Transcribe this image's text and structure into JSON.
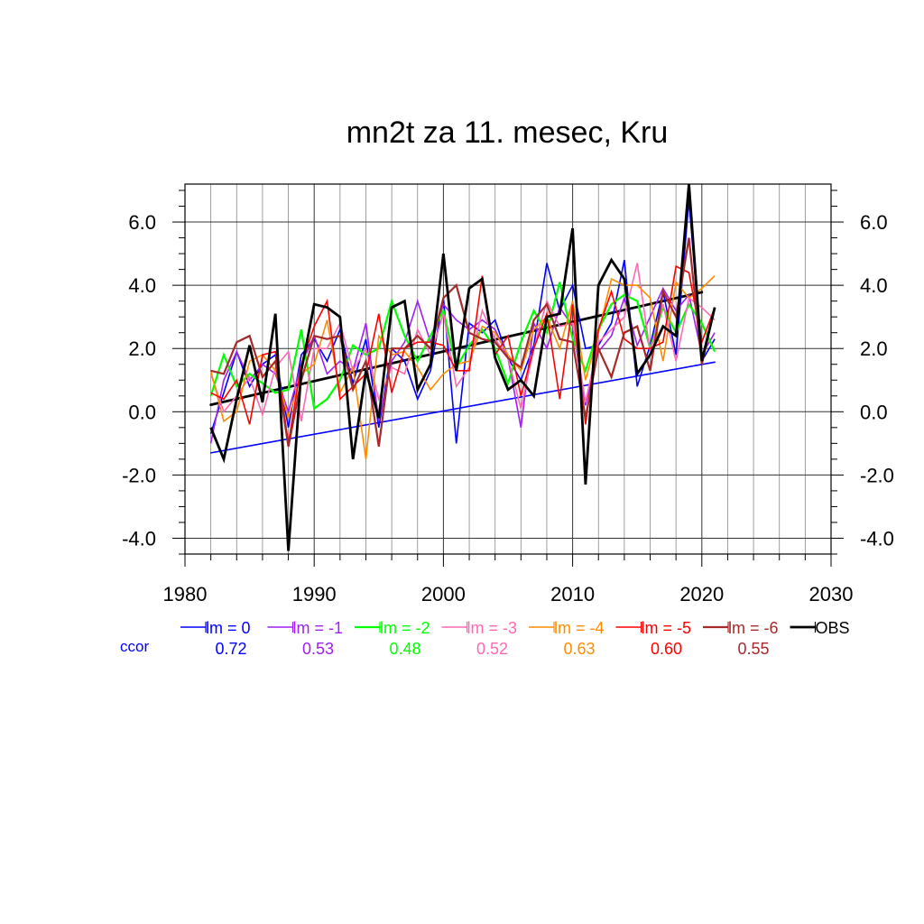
{
  "chart_data": {
    "type": "line",
    "title": "mn2t za 11. mesec, Kru",
    "xlim": [
      1980,
      2030
    ],
    "ylim": [
      -4.5,
      7.2
    ],
    "x_ticks": [
      1980,
      1990,
      2000,
      2010,
      2020,
      2030
    ],
    "x_tick_labels": [
      "1980",
      "1990",
      "2000",
      "2010",
      "2020",
      "2030"
    ],
    "y_ticks": [
      -4,
      -2,
      0,
      2,
      4,
      6
    ],
    "y_tick_labels": [
      "-4.0",
      "-2.0",
      "0.0",
      "2.0",
      "4.0",
      "6.0"
    ],
    "grid": true,
    "legend_position": "bottom",
    "ccor_label": "ccor",
    "x": [
      1982,
      1983,
      1984,
      1985,
      1986,
      1987,
      1988,
      1989,
      1990,
      1991,
      1992,
      1993,
      1994,
      1995,
      1996,
      1997,
      1998,
      1999,
      2000,
      2001,
      2002,
      2003,
      2004,
      2005,
      2006,
      2007,
      2008,
      2009,
      2010,
      2011,
      2012,
      2013,
      2014,
      2015,
      2016,
      2017,
      2018,
      2019,
      2020,
      2021
    ],
    "series": [
      {
        "name": "lm = 0",
        "color": "#0000ff",
        "width": 1.6,
        "ccor": "0.72",
        "values": [
          -0.7,
          0.6,
          1.9,
          0.8,
          1.5,
          1.8,
          -0.5,
          1.8,
          2.3,
          1.6,
          2.6,
          0.9,
          2.3,
          -0.5,
          2.0,
          1.6,
          0.4,
          1.3,
          3.6,
          -1.0,
          2.8,
          2.5,
          2.9,
          1.7,
          1.0,
          2.1,
          4.7,
          3.2,
          4.0,
          2.0,
          2.1,
          2.8,
          4.8,
          0.8,
          2.1,
          3.8,
          1.8,
          6.7,
          1.6,
          2.3
        ]
      },
      {
        "name": "lm = -1",
        "color": "#a020f0",
        "width": 1.6,
        "ccor": "0.53",
        "values": [
          -1.0,
          1.0,
          1.9,
          1.0,
          1.5,
          1.2,
          0.0,
          1.5,
          2.4,
          1.2,
          1.6,
          1.3,
          2.8,
          -0.3,
          1.6,
          2.2,
          3.5,
          2.2,
          3.4,
          2.9,
          2.6,
          2.9,
          2.6,
          1.7,
          -0.5,
          2.8,
          2.0,
          3.3,
          2.7,
          0.2,
          1.9,
          2.4,
          3.6,
          2.1,
          3.0,
          3.9,
          3.2,
          3.7,
          1.8,
          2.5
        ]
      },
      {
        "name": "lm = -2",
        "color": "#00ff00",
        "width": 2.2,
        "ccor": "0.48",
        "values": [
          0.5,
          1.8,
          0.8,
          1.2,
          0.9,
          0.6,
          0.7,
          2.6,
          0.1,
          0.4,
          1.0,
          2.1,
          1.8,
          2.0,
          3.5,
          2.4,
          1.6,
          2.4,
          3.2,
          1.4,
          2.1,
          2.6,
          2.0,
          0.9,
          2.2,
          3.2,
          2.5,
          4.1,
          2.3,
          1.3,
          2.6,
          3.4,
          3.7,
          3.5,
          2.0,
          3.3,
          2.5,
          3.4,
          2.8,
          1.9
        ]
      },
      {
        "name": "lm = -3",
        "color": "#ff69b4",
        "width": 1.6,
        "ccor": "0.52",
        "values": [
          1.2,
          0.0,
          0.5,
          1.1,
          -0.1,
          1.4,
          1.9,
          -0.3,
          2.0,
          2.0,
          2.8,
          1.3,
          2.0,
          0.4,
          1.4,
          1.2,
          2.6,
          1.8,
          3.1,
          0.8,
          1.4,
          3.2,
          2.3,
          1.7,
          0.1,
          2.0,
          3.5,
          2.7,
          2.8,
          0.3,
          2.2,
          2.6,
          3.0,
          4.7,
          1.9,
          3.4,
          1.6,
          3.6,
          3.3,
          2.9
        ]
      },
      {
        "name": "lm = -4",
        "color": "#ff8c00",
        "width": 1.6,
        "ccor": "0.63",
        "values": [
          1.3,
          -0.3,
          0.0,
          1.6,
          1.8,
          1.3,
          -0.2,
          1.2,
          1.5,
          2.9,
          0.6,
          1.4,
          -1.5,
          2.4,
          1.8,
          1.9,
          1.4,
          0.7,
          1.2,
          1.5,
          1.6,
          2.7,
          2.5,
          1.8,
          1.3,
          2.6,
          3.0,
          2.0,
          3.5,
          1.0,
          2.5,
          4.2,
          4.0,
          4.0,
          3.6,
          1.6,
          4.1,
          3.6,
          3.9,
          4.3
        ]
      },
      {
        "name": "lm = -5",
        "color": "#ff0000",
        "width": 1.6,
        "ccor": "0.60",
        "values": [
          0.6,
          0.4,
          1.0,
          -0.4,
          1.8,
          1.9,
          -1.0,
          1.5,
          2.7,
          3.5,
          0.4,
          0.8,
          1.2,
          3.1,
          0.6,
          2.0,
          2.2,
          2.2,
          2.1,
          1.3,
          1.3,
          4.3,
          1.8,
          2.4,
          0.5,
          2.0,
          3.1,
          0.4,
          3.4,
          -0.4,
          2.6,
          3.8,
          2.3,
          2.0,
          2.0,
          2.2,
          4.6,
          4.4,
          2.2,
          3.3
        ]
      },
      {
        "name": "lm = -6",
        "color": "#a52a2a",
        "width": 2.2,
        "ccor": "0.55",
        "values": [
          1.3,
          1.2,
          2.2,
          2.4,
          1.1,
          1.6,
          -1.1,
          1.0,
          2.4,
          2.3,
          2.4,
          0.7,
          1.6,
          -1.1,
          2.0,
          2.0,
          2.4,
          2.0,
          3.6,
          4.0,
          2.5,
          2.3,
          2.2,
          1.7,
          1.4,
          2.9,
          3.4,
          2.3,
          2.2,
          -0.2,
          2.0,
          1.1,
          2.5,
          2.7,
          1.3,
          3.8,
          3.0,
          5.5,
          1.5,
          3.3
        ]
      },
      {
        "name": "OBS",
        "color": "#000000",
        "width": 2.8,
        "ccor": "",
        "values": [
          -0.5,
          -1.5,
          0.4,
          2.1,
          0.3,
          3.1,
          -4.4,
          1.3,
          3.4,
          3.3,
          3.0,
          -1.5,
          1.3,
          -0.2,
          3.3,
          3.5,
          0.7,
          1.5,
          5.0,
          1.3,
          3.9,
          4.2,
          1.7,
          0.7,
          1.0,
          0.5,
          3.0,
          3.1,
          5.8,
          -2.3,
          4.0,
          4.8,
          4.2,
          1.2,
          1.8,
          2.7,
          2.4,
          7.2,
          1.6,
          3.3
        ]
      }
    ],
    "trend_lines": [
      {
        "name": "lm = 0 trend",
        "color": "#0000ff",
        "width": 1.6,
        "x": [
          1982,
          2021
        ],
        "y": [
          -1.3,
          1.57
        ]
      },
      {
        "name": "OBS trend",
        "color": "#000000",
        "width": 2.8,
        "x": [
          1982,
          2020
        ],
        "y": [
          0.22,
          3.78
        ]
      }
    ]
  }
}
